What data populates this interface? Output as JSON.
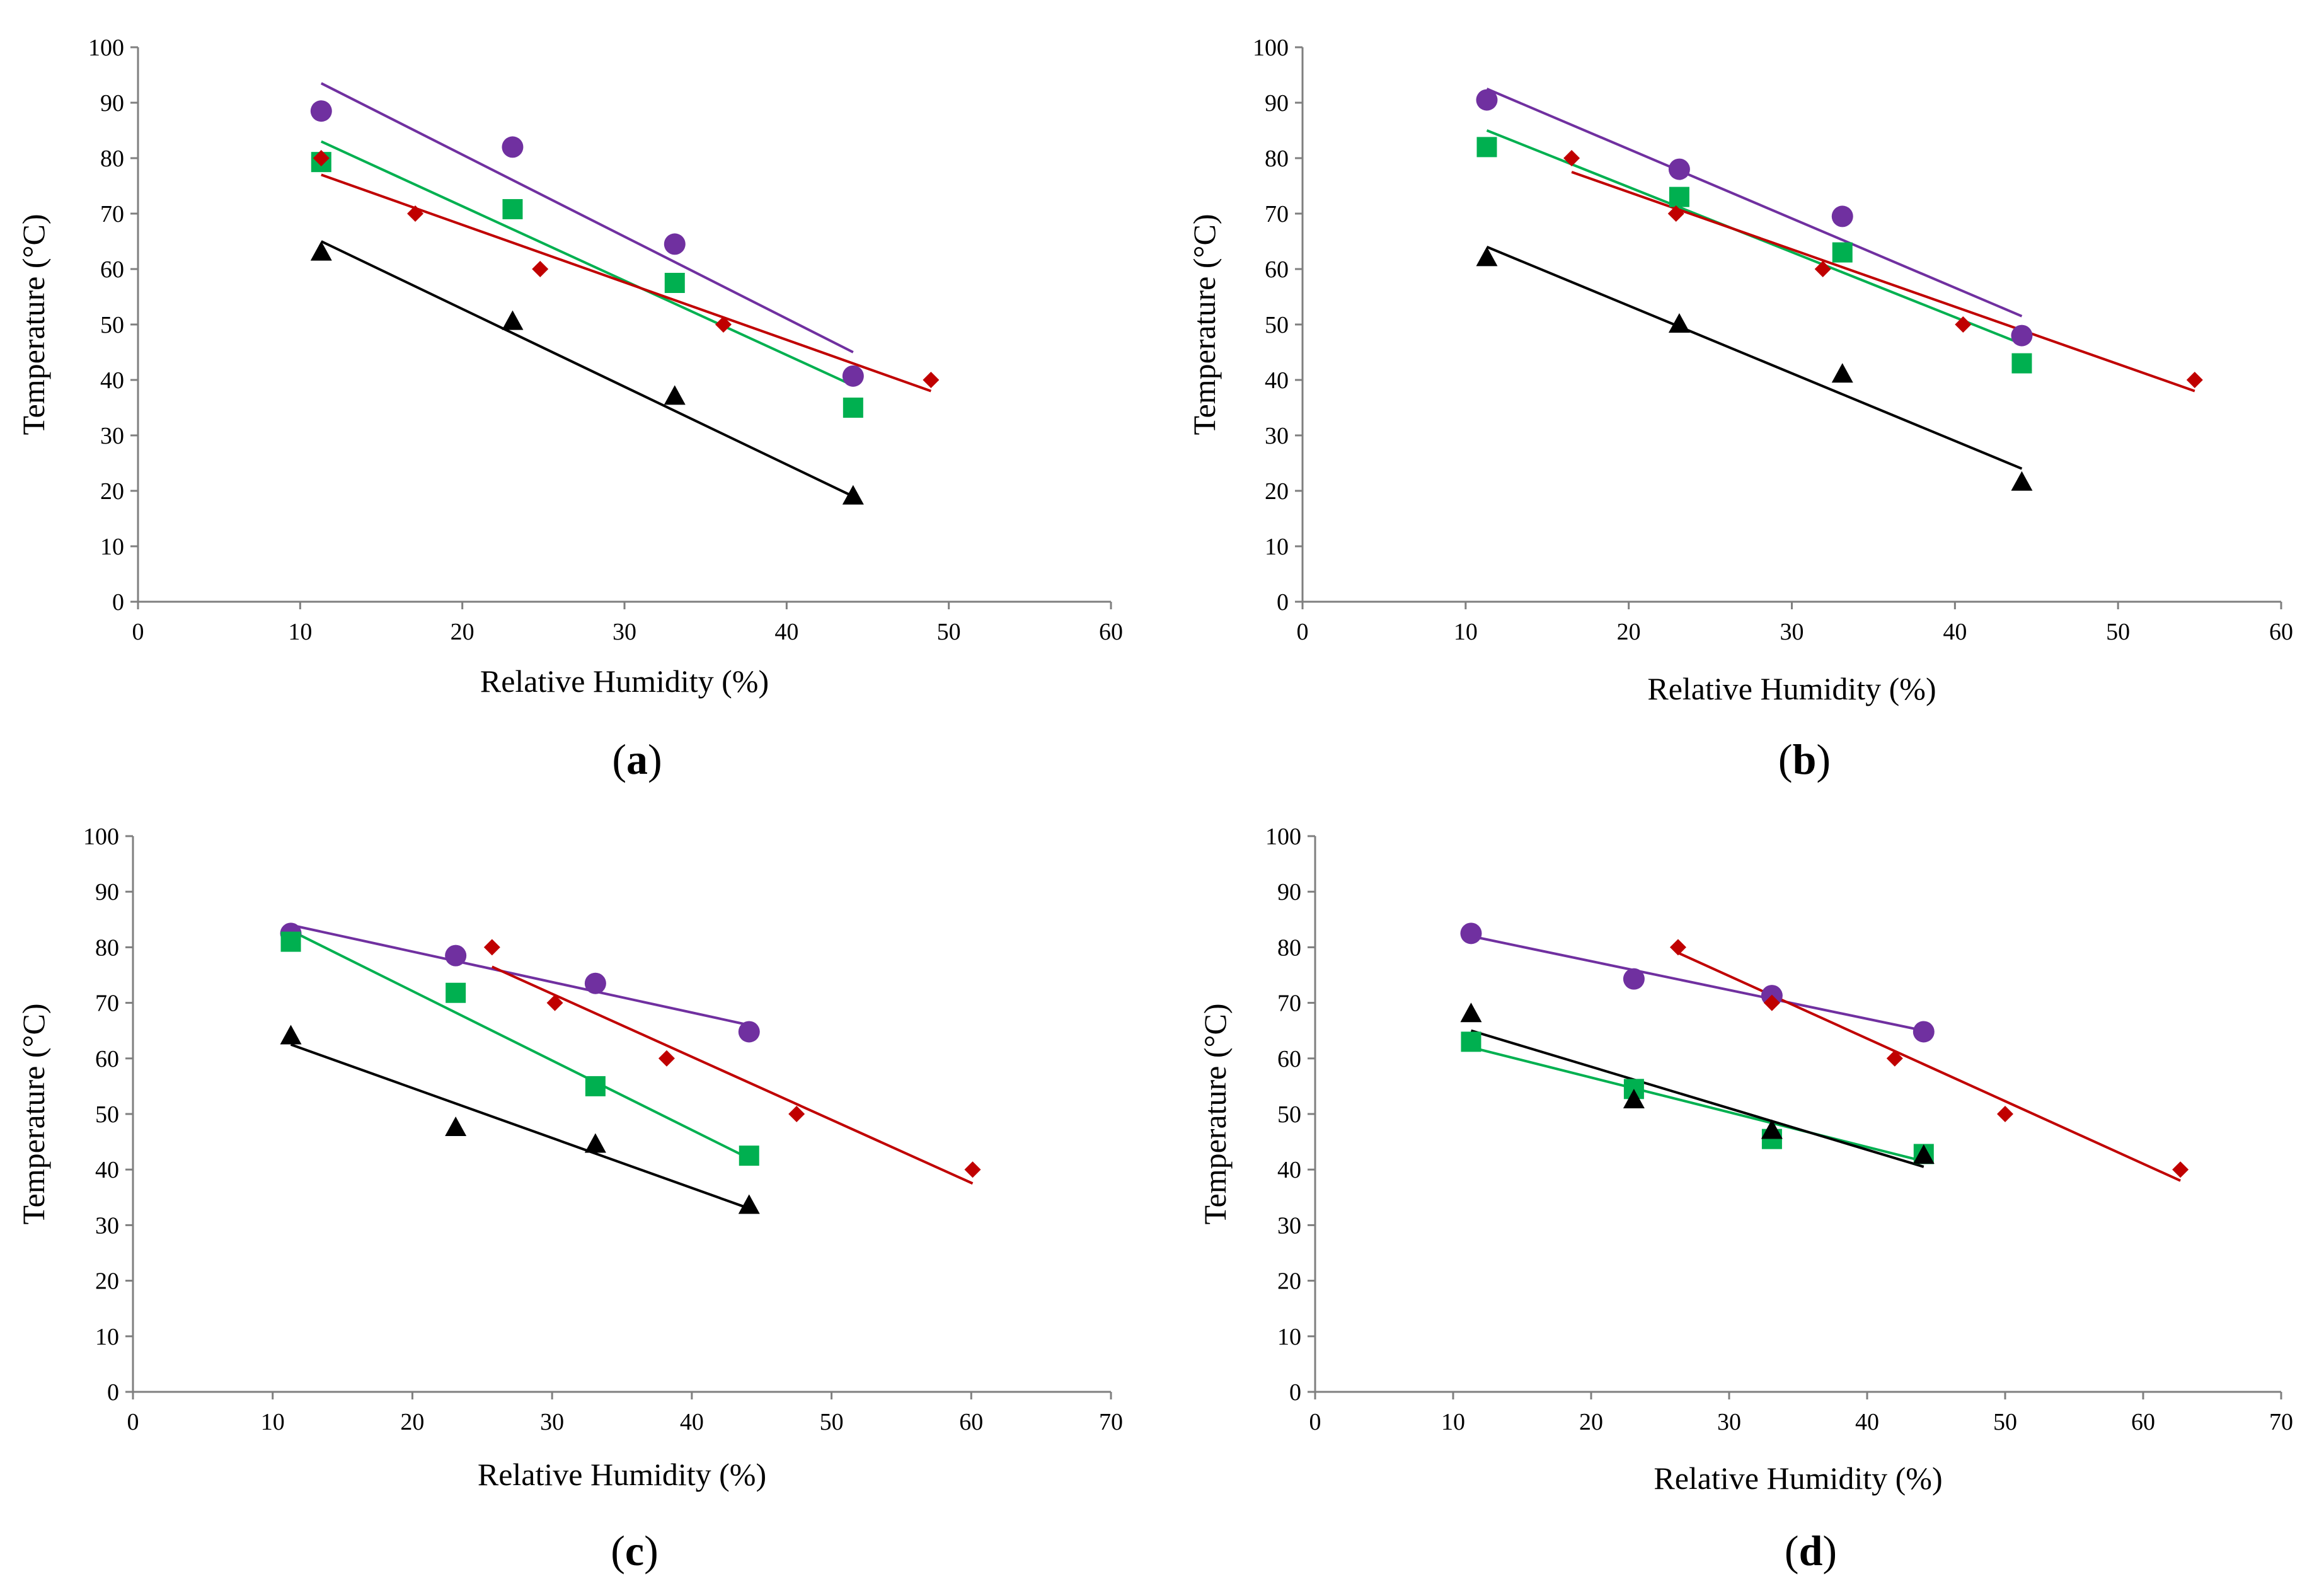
{
  "chart_data": [
    {
      "type": "scatter",
      "panel_label": "a",
      "xlabel": "Relative Humidity (%)",
      "ylabel": "Temperature (°C)",
      "xlim": [
        0,
        60
      ],
      "ylim": [
        0,
        100
      ],
      "xticks": [
        0,
        10,
        20,
        30,
        40,
        50,
        60
      ],
      "yticks": [
        0,
        10,
        20,
        30,
        40,
        50,
        60,
        70,
        80,
        90,
        100
      ],
      "grid": false,
      "series": [
        {
          "marker": "circle",
          "color": "#7030a0",
          "points": [
            [
              11.3,
              88.5
            ],
            [
              23.1,
              82
            ],
            [
              33.1,
              64.5
            ],
            [
              44.1,
              40.7
            ]
          ],
          "trendline": [
            [
              11.3,
              93.5
            ],
            [
              44.1,
              45
            ]
          ]
        },
        {
          "marker": "square",
          "color": "#00b050",
          "points": [
            [
              11.3,
              79.3
            ],
            [
              23.1,
              70.8
            ],
            [
              33.1,
              57.5
            ],
            [
              44.1,
              35
            ]
          ],
          "trendline": [
            [
              11.3,
              83
            ],
            [
              44.1,
              39
            ]
          ]
        },
        {
          "marker": "diamond",
          "color": "#c00000",
          "points": [
            [
              11.3,
              80
            ],
            [
              17.1,
              70
            ],
            [
              24.8,
              60
            ],
            [
              36.1,
              50
            ],
            [
              48.9,
              40
            ]
          ],
          "trendline": [
            [
              11.3,
              77
            ],
            [
              48.9,
              38
            ]
          ]
        },
        {
          "marker": "triangle",
          "color": "#000000",
          "points": [
            [
              11.3,
              63
            ],
            [
              23.1,
              50.5
            ],
            [
              33.1,
              37
            ],
            [
              44.1,
              19
            ]
          ],
          "trendline": [
            [
              11.3,
              65
            ],
            [
              44.1,
              19
            ]
          ]
        }
      ]
    },
    {
      "type": "scatter",
      "panel_label": "b",
      "xlabel": "Relative Humidity (%)",
      "ylabel": "Temperature (°C)",
      "xlim": [
        0,
        60
      ],
      "ylim": [
        0,
        100
      ],
      "xticks": [
        0,
        10,
        20,
        30,
        40,
        50,
        60
      ],
      "yticks": [
        0,
        10,
        20,
        30,
        40,
        50,
        60,
        70,
        80,
        90,
        100
      ],
      "grid": false,
      "series": [
        {
          "marker": "circle",
          "color": "#7030a0",
          "points": [
            [
              11.3,
              90.5
            ],
            [
              23.1,
              78
            ],
            [
              33.1,
              69.5
            ],
            [
              44.1,
              48
            ]
          ],
          "trendline": [
            [
              11.3,
              92.5
            ],
            [
              44.1,
              51.5
            ]
          ]
        },
        {
          "marker": "square",
          "color": "#00b050",
          "points": [
            [
              11.3,
              82
            ],
            [
              23.1,
              73
            ],
            [
              33.1,
              63
            ],
            [
              44.1,
              43
            ]
          ],
          "trendline": [
            [
              11.3,
              85
            ],
            [
              44.1,
              46.5
            ]
          ]
        },
        {
          "marker": "diamond",
          "color": "#c00000",
          "points": [
            [
              16.5,
              80
            ],
            [
              22.9,
              70
            ],
            [
              31.9,
              60
            ],
            [
              40.5,
              50
            ],
            [
              54.7,
              40
            ]
          ],
          "trendline": [
            [
              16.5,
              77.5
            ],
            [
              54.7,
              38
            ]
          ]
        },
        {
          "marker": "triangle",
          "color": "#000000",
          "points": [
            [
              11.3,
              62
            ],
            [
              23.1,
              50
            ],
            [
              33.1,
              41
            ],
            [
              44.1,
              21.5
            ]
          ],
          "trendline": [
            [
              11.3,
              64
            ],
            [
              44.1,
              24
            ]
          ]
        }
      ]
    },
    {
      "type": "scatter",
      "panel_label": "c",
      "xlabel": "Relative Humidity (%)",
      "ylabel": "Temperature (°C)",
      "xlim": [
        0,
        70
      ],
      "ylim": [
        0,
        100
      ],
      "xticks": [
        0,
        10,
        20,
        30,
        40,
        50,
        60,
        70
      ],
      "yticks": [
        0,
        10,
        20,
        30,
        40,
        50,
        60,
        70,
        80,
        90,
        100
      ],
      "grid": false,
      "series": [
        {
          "marker": "circle",
          "color": "#7030a0",
          "points": [
            [
              11.3,
              82.5
            ],
            [
              23.1,
              78.5
            ],
            [
              33.1,
              73.5
            ],
            [
              44.1,
              64.8
            ]
          ],
          "trendline": [
            [
              11.3,
              84
            ],
            [
              44.1,
              66
            ]
          ]
        },
        {
          "marker": "square",
          "color": "#00b050",
          "points": [
            [
              11.3,
              81
            ],
            [
              23.1,
              71.8
            ],
            [
              33.1,
              55
            ],
            [
              44.1,
              42.5
            ]
          ],
          "trendline": [
            [
              11.3,
              83
            ],
            [
              44.1,
              42
            ]
          ]
        },
        {
          "marker": "diamond",
          "color": "#c00000",
          "points": [
            [
              25.7,
              80
            ],
            [
              30.2,
              70
            ],
            [
              38.2,
              60
            ],
            [
              47.5,
              50
            ],
            [
              60.1,
              40
            ]
          ],
          "trendline": [
            [
              25.7,
              76.5
            ],
            [
              60.1,
              37.5
            ]
          ]
        },
        {
          "marker": "triangle",
          "color": "#000000",
          "points": [
            [
              11.3,
              64
            ],
            [
              23.1,
              47.5
            ],
            [
              33.1,
              44.5
            ],
            [
              44.1,
              33.5
            ]
          ],
          "trendline": [
            [
              11.3,
              62.5
            ],
            [
              44.1,
              33
            ]
          ]
        }
      ]
    },
    {
      "type": "scatter",
      "panel_label": "d",
      "xlabel": "Relative Humidity (%)",
      "ylabel": "Temperature (°C)",
      "xlim": [
        0,
        70
      ],
      "ylim": [
        0,
        100
      ],
      "xticks": [
        0,
        10,
        20,
        30,
        40,
        50,
        60,
        70
      ],
      "yticks": [
        0,
        10,
        20,
        30,
        40,
        50,
        60,
        70,
        80,
        90,
        100
      ],
      "grid": false,
      "series": [
        {
          "marker": "circle",
          "color": "#7030a0",
          "points": [
            [
              11.3,
              82.5
            ],
            [
              23.1,
              74.3
            ],
            [
              33.1,
              71.3
            ],
            [
              44.1,
              64.8
            ]
          ],
          "trendline": [
            [
              11.3,
              82
            ],
            [
              44.1,
              65
            ]
          ]
        },
        {
          "marker": "square",
          "color": "#00b050",
          "points": [
            [
              11.3,
              63
            ],
            [
              23.1,
              54.5
            ],
            [
              33.1,
              45.5
            ],
            [
              44.1,
              42.8
            ]
          ],
          "trendline": [
            [
              11.3,
              62
            ],
            [
              44.1,
              41.5
            ]
          ]
        },
        {
          "marker": "diamond",
          "color": "#c00000",
          "points": [
            [
              26.3,
              80
            ],
            [
              33.1,
              70
            ],
            [
              42,
              60
            ],
            [
              50,
              50
            ],
            [
              62.7,
              40
            ]
          ],
          "trendline": [
            [
              26.3,
              79
            ],
            [
              62.7,
              38
            ]
          ]
        },
        {
          "marker": "triangle",
          "color": "#000000",
          "points": [
            [
              11.3,
              68
            ],
            [
              23.1,
              52.5
            ],
            [
              33.1,
              47
            ],
            [
              44.1,
              42.5
            ]
          ],
          "trendline": [
            [
              11.3,
              65
            ],
            [
              44.1,
              40.5
            ]
          ]
        }
      ]
    }
  ]
}
